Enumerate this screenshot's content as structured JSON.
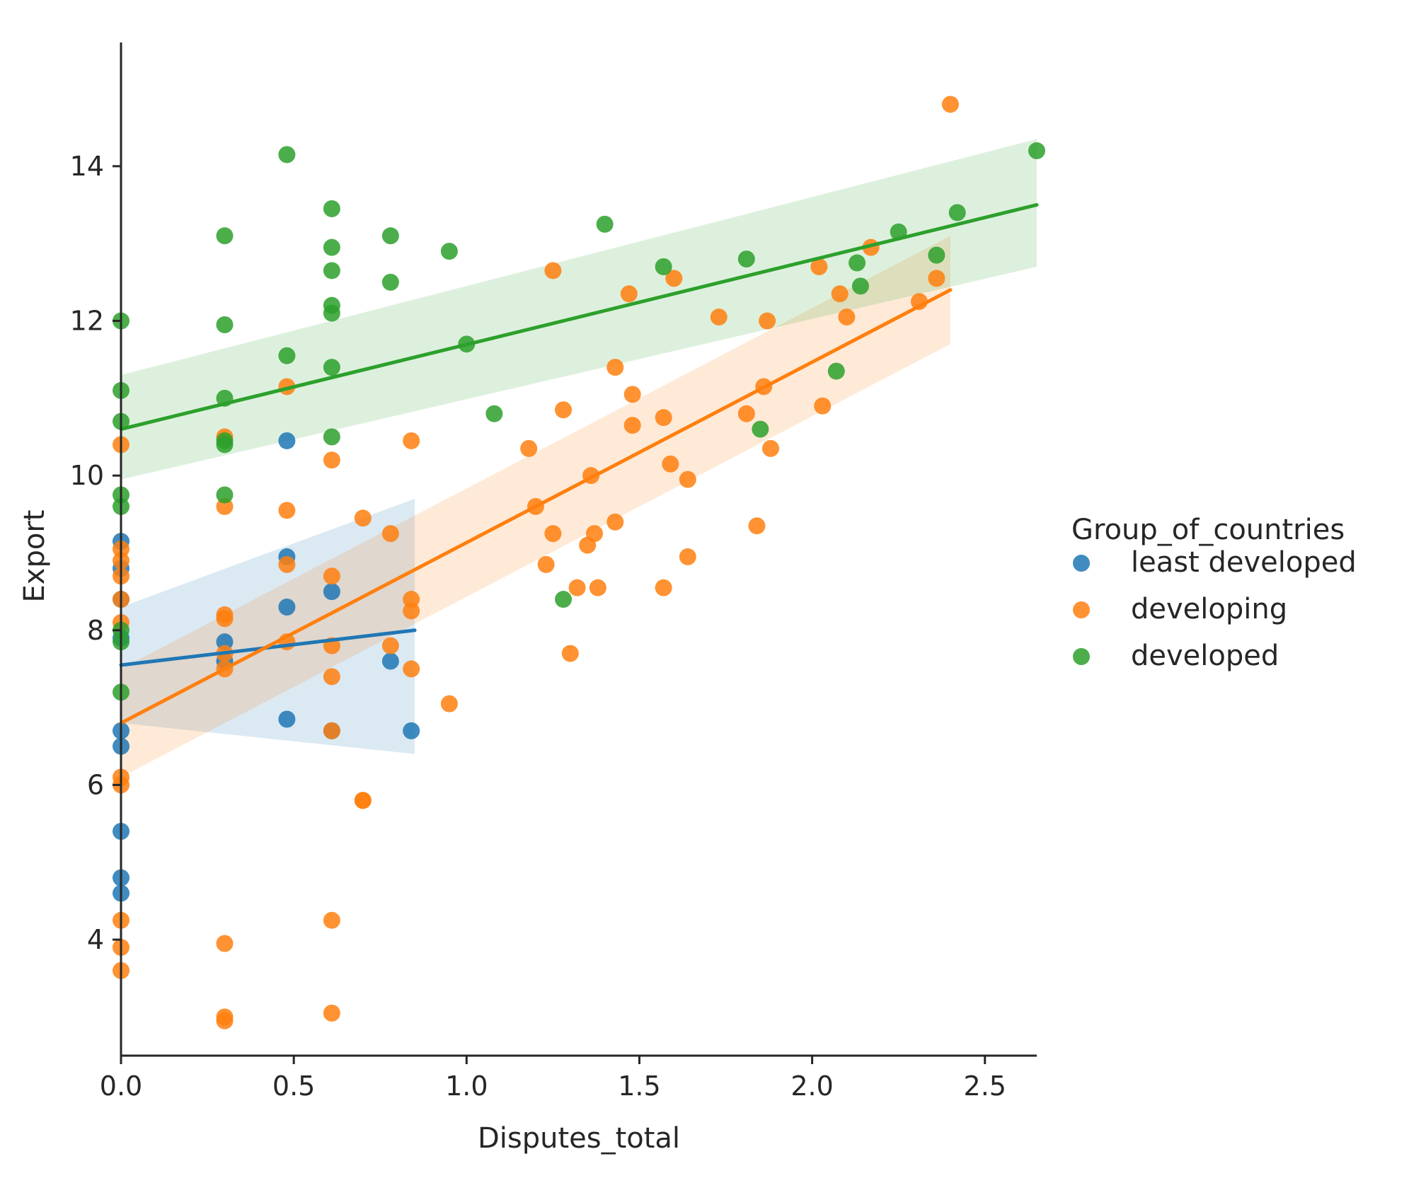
{
  "chart_data": {
    "type": "scatter",
    "title": "",
    "xlabel": "Disputes_total",
    "ylabel": "Export",
    "xlim": [
      0.0,
      2.65
    ],
    "ylim": [
      2.5,
      15.6
    ],
    "xticks": [
      0.0,
      0.5,
      1.0,
      1.5,
      2.0,
      2.5
    ],
    "xtick_labels": [
      "0.0",
      "0.5",
      "1.0",
      "1.5",
      "2.0",
      "2.5"
    ],
    "yticks": [
      4,
      6,
      8,
      10,
      12,
      14
    ],
    "ytick_labels": [
      "4",
      "6",
      "8",
      "10",
      "12",
      "14"
    ],
    "grid": false,
    "legend": {
      "title": "Group_of_countries",
      "placement": "center-right, outside plot"
    },
    "series": [
      {
        "name": "least developed",
        "color": "#1f77b4",
        "points": [
          [
            0.0,
            5.4
          ],
          [
            0.0,
            4.8
          ],
          [
            0.0,
            4.6
          ],
          [
            0.0,
            6.7
          ],
          [
            0.0,
            6.5
          ],
          [
            0.0,
            9.15
          ],
          [
            0.0,
            8.8
          ],
          [
            0.0,
            8.4
          ],
          [
            0.0,
            7.9
          ],
          [
            0.3,
            7.85
          ],
          [
            0.3,
            7.6
          ],
          [
            0.48,
            10.45
          ],
          [
            0.48,
            8.95
          ],
          [
            0.48,
            8.3
          ],
          [
            0.48,
            6.85
          ],
          [
            0.61,
            8.5
          ],
          [
            0.61,
            6.7
          ],
          [
            0.78,
            7.6
          ],
          [
            0.84,
            6.7
          ]
        ],
        "regression": {
          "x": [
            0.0,
            0.85
          ],
          "y": [
            7.55,
            8.0
          ],
          "ci_upper": [
            8.3,
            9.7
          ],
          "ci_lower": [
            6.8,
            6.4
          ]
        }
      },
      {
        "name": "developing",
        "color": "#ff7f0e",
        "points": [
          [
            0.0,
            10.4
          ],
          [
            0.0,
            9.05
          ],
          [
            0.0,
            8.9
          ],
          [
            0.0,
            8.7
          ],
          [
            0.0,
            8.4
          ],
          [
            0.0,
            8.1
          ],
          [
            0.0,
            6.1
          ],
          [
            0.0,
            6.0
          ],
          [
            0.0,
            4.25
          ],
          [
            0.0,
            3.9
          ],
          [
            0.0,
            3.6
          ],
          [
            0.3,
            10.5
          ],
          [
            0.3,
            9.6
          ],
          [
            0.3,
            8.2
          ],
          [
            0.3,
            8.15
          ],
          [
            0.3,
            7.7
          ],
          [
            0.3,
            7.5
          ],
          [
            0.3,
            3.95
          ],
          [
            0.3,
            3.0
          ],
          [
            0.3,
            2.95
          ],
          [
            0.48,
            11.15
          ],
          [
            0.48,
            9.55
          ],
          [
            0.48,
            8.85
          ],
          [
            0.48,
            7.85
          ],
          [
            0.61,
            10.2
          ],
          [
            0.61,
            8.7
          ],
          [
            0.61,
            7.8
          ],
          [
            0.61,
            7.4
          ],
          [
            0.61,
            6.7
          ],
          [
            0.61,
            4.25
          ],
          [
            0.61,
            3.05
          ],
          [
            0.7,
            9.45
          ],
          [
            0.7,
            5.8
          ],
          [
            0.7,
            5.8
          ],
          [
            0.78,
            9.25
          ],
          [
            0.78,
            7.8
          ],
          [
            0.84,
            10.45
          ],
          [
            0.84,
            8.4
          ],
          [
            0.84,
            8.25
          ],
          [
            0.84,
            7.5
          ],
          [
            0.95,
            7.05
          ],
          [
            1.18,
            10.35
          ],
          [
            1.2,
            9.6
          ],
          [
            1.23,
            8.85
          ],
          [
            1.25,
            12.65
          ],
          [
            1.25,
            9.25
          ],
          [
            1.28,
            10.85
          ],
          [
            1.3,
            7.7
          ],
          [
            1.32,
            8.55
          ],
          [
            1.35,
            9.1
          ],
          [
            1.36,
            10.0
          ],
          [
            1.37,
            9.25
          ],
          [
            1.38,
            8.55
          ],
          [
            1.43,
            11.4
          ],
          [
            1.43,
            9.4
          ],
          [
            1.47,
            12.35
          ],
          [
            1.48,
            11.05
          ],
          [
            1.48,
            10.65
          ],
          [
            1.57,
            10.75
          ],
          [
            1.57,
            8.55
          ],
          [
            1.59,
            10.15
          ],
          [
            1.6,
            12.55
          ],
          [
            1.64,
            9.95
          ],
          [
            1.64,
            8.95
          ],
          [
            1.73,
            12.05
          ],
          [
            1.81,
            10.8
          ],
          [
            1.84,
            9.35
          ],
          [
            1.86,
            11.15
          ],
          [
            1.87,
            12.0
          ],
          [
            1.88,
            10.35
          ],
          [
            2.02,
            12.7
          ],
          [
            2.03,
            10.9
          ],
          [
            2.08,
            12.35
          ],
          [
            2.1,
            12.05
          ],
          [
            2.17,
            12.95
          ],
          [
            2.31,
            12.25
          ],
          [
            2.36,
            12.55
          ],
          [
            2.4,
            14.8
          ]
        ],
        "regression": {
          "x": [
            0.0,
            2.4
          ],
          "y": [
            6.8,
            12.4
          ],
          "ci_upper": [
            7.5,
            13.1
          ],
          "ci_lower": [
            6.1,
            11.7
          ]
        }
      },
      {
        "name": "developed",
        "color": "#2ca02c",
        "points": [
          [
            0.0,
            12.0
          ],
          [
            0.0,
            11.1
          ],
          [
            0.0,
            10.7
          ],
          [
            0.0,
            9.75
          ],
          [
            0.0,
            9.6
          ],
          [
            0.0,
            8.0
          ],
          [
            0.0,
            7.85
          ],
          [
            0.0,
            7.2
          ],
          [
            0.3,
            13.1
          ],
          [
            0.3,
            11.95
          ],
          [
            0.3,
            11.0
          ],
          [
            0.3,
            10.45
          ],
          [
            0.3,
            10.4
          ],
          [
            0.3,
            9.75
          ],
          [
            0.48,
            14.15
          ],
          [
            0.48,
            11.55
          ],
          [
            0.61,
            13.45
          ],
          [
            0.61,
            12.95
          ],
          [
            0.61,
            12.65
          ],
          [
            0.61,
            12.2
          ],
          [
            0.61,
            12.1
          ],
          [
            0.61,
            11.4
          ],
          [
            0.61,
            10.5
          ],
          [
            0.78,
            13.1
          ],
          [
            0.78,
            12.5
          ],
          [
            0.95,
            12.9
          ],
          [
            1.0,
            11.7
          ],
          [
            1.08,
            10.8
          ],
          [
            1.28,
            8.4
          ],
          [
            1.4,
            13.25
          ],
          [
            1.57,
            12.7
          ],
          [
            1.81,
            12.8
          ],
          [
            1.85,
            10.6
          ],
          [
            2.07,
            11.35
          ],
          [
            2.13,
            12.75
          ],
          [
            2.14,
            12.45
          ],
          [
            2.25,
            13.15
          ],
          [
            2.36,
            12.85
          ],
          [
            2.42,
            13.4
          ],
          [
            2.65,
            14.2
          ]
        ],
        "regression": {
          "x": [
            0.0,
            2.65
          ],
          "y": [
            10.6,
            13.5
          ],
          "ci_upper": [
            11.3,
            14.35
          ],
          "ci_lower": [
            9.95,
            12.7
          ]
        }
      }
    ]
  }
}
